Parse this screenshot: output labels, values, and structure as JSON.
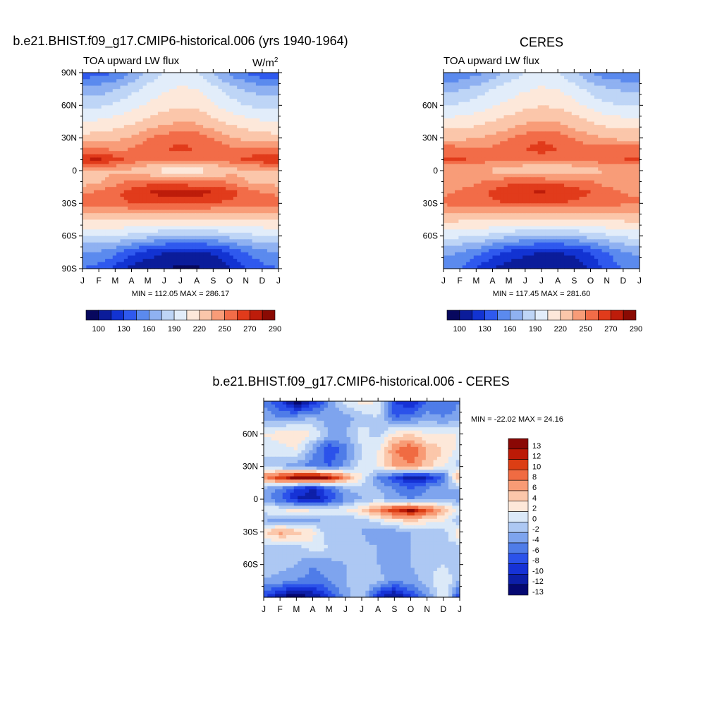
{
  "panels": [
    {
      "id": "model",
      "title": "b.e21.BHIST.f09_g17.CMIP6-historical.006 (yrs 1940-1964)",
      "left_label": "TOA upward LW flux",
      "units_base": "W/m",
      "units_sup": "2",
      "stats": "MIN = 112.05 MAX = 286.17"
    },
    {
      "id": "obs",
      "title": "CERES",
      "left_label": "TOA upward LW flux",
      "stats": "MIN = 117.45 MAX = 281.60"
    },
    {
      "id": "diff",
      "title": "b.e21.BHIST.f09_g17.CMIP6-historical.006 - CERES",
      "stats": "MIN = -22.02 MAX =  24.16"
    }
  ],
  "colors": {
    "abs_palette": [
      "#07085e",
      "#0b1c9a",
      "#1233d2",
      "#2f59ee",
      "#5b8aee",
      "#8fb1f1",
      "#bed5f6",
      "#e2edfa",
      "#fde8da",
      "#fbc6aa",
      "#f89c78",
      "#f26c48",
      "#e13b1b",
      "#bd1c0a",
      "#8a0a03"
    ],
    "diff_palette": [
      "#050872",
      "#0d1fa8",
      "#1632d6",
      "#2b52ea",
      "#4f7ce8",
      "#7ea4ee",
      "#adc8f3",
      "#dbe9f8",
      "#fde8d9",
      "#fbc7aa",
      "#f89b75",
      "#f06b42",
      "#dc3e14",
      "#bc1a06",
      "#8a0805"
    ]
  },
  "chart_data": [
    {
      "type": "heatmap",
      "title": "b.e21.BHIST.f09_g17.CMIP6-historical.006 (yrs 1940-1964)",
      "subtitle": "TOA upward LW flux",
      "units": "W/m2",
      "x_ticks": [
        "J",
        "F",
        "M",
        "A",
        "M",
        "J",
        "J",
        "A",
        "S",
        "O",
        "N",
        "D",
        "J"
      ],
      "y_ticks": [
        "90N",
        "60N",
        "30N",
        "0",
        "30S",
        "60S",
        "90S"
      ],
      "colorbar_labels": [
        "100",
        "130",
        "160",
        "190",
        "220",
        "250",
        "270",
        "290"
      ],
      "levels": [
        100,
        115,
        130,
        145,
        160,
        175,
        190,
        205,
        220,
        235,
        250,
        260,
        270,
        280,
        290
      ],
      "latitudes": [
        90,
        75,
        60,
        45,
        30,
        20,
        10,
        0,
        -10,
        -20,
        -30,
        -45,
        -60,
        -75,
        -90
      ],
      "values": [
        [
          150,
          152,
          160,
          175,
          195,
          205,
          210,
          205,
          190,
          170,
          158,
          150,
          150
        ],
        [
          180,
          182,
          190,
          200,
          210,
          218,
          222,
          220,
          210,
          198,
          188,
          182,
          180
        ],
        [
          200,
          202,
          208,
          215,
          222,
          228,
          232,
          230,
          222,
          212,
          205,
          200,
          200
        ],
        [
          220,
          222,
          226,
          232,
          240,
          246,
          250,
          248,
          240,
          232,
          226,
          222,
          220
        ],
        [
          240,
          242,
          246,
          252,
          260,
          265,
          268,
          266,
          260,
          252,
          246,
          242,
          240
        ],
        [
          262,
          262,
          258,
          260,
          266,
          270,
          272,
          270,
          266,
          262,
          262,
          262,
          262
        ],
        [
          280,
          282,
          275,
          266,
          262,
          262,
          262,
          262,
          262,
          265,
          272,
          278,
          280
        ],
        [
          245,
          246,
          248,
          248,
          240,
          228,
          225,
          225,
          236,
          245,
          248,
          246,
          245
        ],
        [
          245,
          248,
          255,
          262,
          265,
          265,
          262,
          262,
          262,
          258,
          250,
          246,
          245
        ],
        [
          258,
          262,
          268,
          274,
          280,
          284,
          286,
          284,
          280,
          274,
          266,
          260,
          258
        ],
        [
          265,
          266,
          268,
          270,
          272,
          272,
          272,
          272,
          270,
          268,
          266,
          265,
          265
        ],
        [
          235,
          235,
          238,
          238,
          236,
          234,
          234,
          234,
          236,
          238,
          238,
          235,
          235
        ],
        [
          205,
          205,
          205,
          200,
          195,
          190,
          188,
          188,
          190,
          195,
          200,
          205,
          205
        ],
        [
          175,
          172,
          165,
          150,
          138,
          130,
          128,
          128,
          132,
          145,
          160,
          170,
          175
        ],
        [
          160,
          155,
          140,
          125,
          118,
          114,
          113,
          113,
          116,
          128,
          145,
          155,
          160
        ]
      ]
    },
    {
      "type": "heatmap",
      "title": "CERES",
      "subtitle": "TOA upward LW flux",
      "x_ticks": [
        "J",
        "F",
        "M",
        "A",
        "M",
        "J",
        "J",
        "A",
        "S",
        "O",
        "N",
        "D",
        "J"
      ],
      "y_ticks": [
        "60N",
        "30N",
        "0",
        "30S",
        "60S"
      ],
      "colorbar_labels": [
        "100",
        "130",
        "160",
        "190",
        "220",
        "250",
        "270",
        "290"
      ],
      "levels": [
        100,
        115,
        130,
        145,
        160,
        175,
        190,
        205,
        220,
        235,
        250,
        260,
        270,
        280,
        290
      ],
      "latitudes": [
        90,
        75,
        60,
        45,
        30,
        20,
        10,
        0,
        -10,
        -20,
        -30,
        -45,
        -60,
        -75,
        -90
      ],
      "values": [
        [
          160,
          162,
          170,
          180,
          195,
          205,
          208,
          205,
          192,
          175,
          165,
          160,
          160
        ],
        [
          185,
          188,
          195,
          205,
          212,
          218,
          222,
          220,
          212,
          200,
          192,
          188,
          185
        ],
        [
          205,
          207,
          212,
          218,
          225,
          230,
          234,
          232,
          225,
          215,
          208,
          205,
          205
        ],
        [
          225,
          226,
          230,
          236,
          242,
          248,
          252,
          250,
          242,
          235,
          228,
          226,
          225
        ],
        [
          245,
          246,
          250,
          254,
          260,
          265,
          268,
          266,
          260,
          254,
          250,
          246,
          245
        ],
        [
          266,
          264,
          260,
          262,
          266,
          270,
          274,
          270,
          266,
          262,
          264,
          266,
          266
        ],
        [
          272,
          272,
          266,
          262,
          260,
          262,
          264,
          262,
          260,
          262,
          266,
          270,
          272
        ],
        [
          250,
          250,
          250,
          248,
          244,
          240,
          238,
          238,
          242,
          246,
          250,
          250,
          250
        ],
        [
          252,
          254,
          258,
          262,
          266,
          268,
          268,
          266,
          264,
          260,
          256,
          252,
          252
        ],
        [
          258,
          262,
          266,
          272,
          278,
          280,
          281,
          280,
          276,
          270,
          264,
          260,
          258
        ],
        [
          262,
          264,
          266,
          268,
          270,
          270,
          270,
          270,
          268,
          266,
          264,
          262,
          262
        ],
        [
          238,
          238,
          238,
          238,
          236,
          234,
          234,
          234,
          236,
          238,
          238,
          238,
          238
        ],
        [
          210,
          208,
          206,
          200,
          194,
          190,
          188,
          188,
          190,
          196,
          202,
          208,
          210
        ],
        [
          180,
          175,
          165,
          152,
          140,
          133,
          130,
          130,
          134,
          146,
          160,
          172,
          180
        ],
        [
          165,
          160,
          145,
          130,
          122,
          118,
          117,
          117,
          120,
          132,
          148,
          160,
          165
        ]
      ]
    },
    {
      "type": "heatmap",
      "title": "b.e21.BHIST.f09_g17.CMIP6-historical.006 - CERES",
      "x_ticks": [
        "J",
        "F",
        "M",
        "A",
        "M",
        "J",
        "J",
        "A",
        "S",
        "O",
        "N",
        "D",
        "J"
      ],
      "y_ticks": [
        "60N",
        "30N",
        "0",
        "30S",
        "60S"
      ],
      "colorbar_labels": [
        "13",
        "12",
        "10",
        "8",
        "6",
        "4",
        "2",
        "0",
        "-2",
        "-4",
        "-6",
        "-8",
        "-10",
        "-12",
        "-13"
      ],
      "levels": [
        -13,
        -12,
        -10,
        -8,
        -6,
        -4,
        -2,
        0,
        2,
        4,
        6,
        8,
        10,
        12,
        13
      ],
      "latitudes": [
        90,
        75,
        60,
        45,
        30,
        20,
        10,
        0,
        -10,
        -20,
        -30,
        -45,
        -60,
        -75,
        -90
      ],
      "values": [
        [
          -4,
          -8,
          -14,
          -10,
          -4,
          1,
          3,
          2,
          -8,
          -10,
          -6,
          -6,
          -4
        ],
        [
          -3,
          -4,
          -3,
          -2,
          -3,
          -3,
          -1,
          0,
          -6,
          -5,
          -3,
          -4,
          -3
        ],
        [
          2,
          3,
          4,
          2,
          -2,
          -2,
          1,
          -1,
          3,
          4,
          2,
          2,
          2
        ],
        [
          1,
          1,
          2,
          -3,
          -8,
          -5,
          0,
          2,
          8,
          10,
          6,
          4,
          1
        ],
        [
          -1,
          -2,
          -3,
          -5,
          -6,
          -3,
          1,
          2,
          6,
          8,
          5,
          2,
          -1
        ],
        [
          8,
          12,
          15,
          16,
          14,
          8,
          2,
          -4,
          -8,
          -12,
          -10,
          -6,
          8
        ],
        [
          -2,
          -4,
          -8,
          -10,
          -6,
          -2,
          -1,
          -2,
          -4,
          -6,
          -4,
          -2,
          -2
        ],
        [
          -3,
          -6,
          -10,
          -12,
          -8,
          -4,
          -2,
          -1,
          -3,
          -4,
          -3,
          -2,
          -3
        ],
        [
          1,
          2,
          3,
          2,
          1,
          2,
          4,
          8,
          12,
          14,
          10,
          6,
          1
        ],
        [
          -2,
          -3,
          -4,
          -3,
          -1,
          -2,
          -1,
          1,
          3,
          4,
          3,
          2,
          -2
        ],
        [
          4,
          7,
          5,
          3,
          -2,
          -1,
          -2,
          -4,
          -3,
          -2,
          -1,
          -1,
          4
        ],
        [
          -1,
          -2,
          -1,
          1,
          0,
          -1,
          -1,
          -2,
          -3,
          -2,
          -1,
          -1,
          -1
        ],
        [
          -1,
          -1,
          -2,
          -4,
          -3,
          -2,
          -1,
          -2,
          -3,
          -2,
          -1,
          0,
          -1
        ],
        [
          -2,
          -3,
          -4,
          -5,
          -4,
          -2,
          0,
          -1,
          -4,
          -3,
          -1,
          2,
          -2
        ],
        [
          -8,
          -12,
          -14,
          -12,
          -8,
          -3,
          0,
          -10,
          -13,
          -8,
          -4,
          2,
          -8
        ]
      ]
    }
  ]
}
